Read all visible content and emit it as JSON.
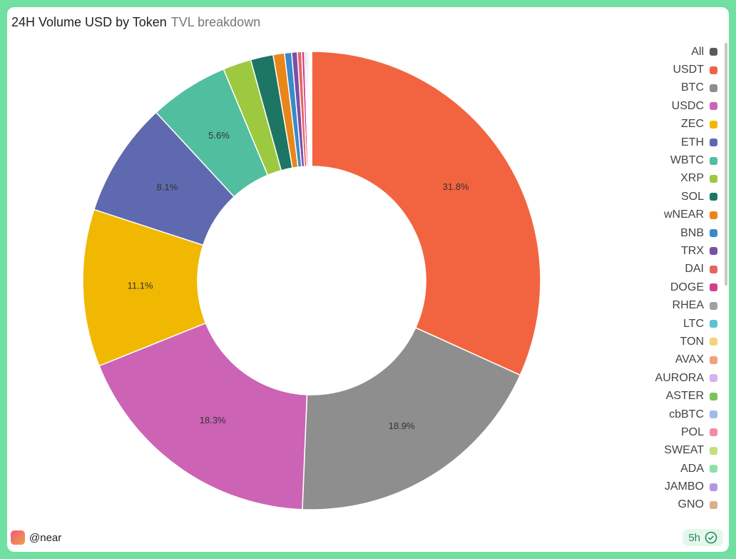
{
  "chart_data": {
    "type": "donut",
    "title": "24H Volume USD by Token",
    "subtitle": "TVL breakdown",
    "legend_all": {
      "label": "All",
      "color": "#5a5a5a"
    },
    "categories": [
      "USDT",
      "BTC",
      "USDC",
      "ZEC",
      "ETH",
      "WBTC",
      "XRP",
      "SOL",
      "wNEAR",
      "BNB",
      "TRX",
      "DAI",
      "DOGE",
      "RHEA",
      "LTC",
      "TON",
      "AVAX",
      "AURORA",
      "ASTER",
      "cbBTC",
      "POL",
      "SWEAT",
      "ADA",
      "JAMBO",
      "GNO"
    ],
    "values": [
      31.8,
      18.9,
      18.3,
      11.1,
      8.1,
      5.6,
      2.0,
      1.6,
      0.8,
      0.5,
      0.4,
      0.3,
      0.2,
      0.1,
      0.1,
      0.1,
      0.05,
      0.03,
      0.03,
      0.02,
      0.02,
      0.02,
      0.01,
      0.01,
      0.01
    ],
    "value_labels": [
      "31.8%",
      "18.9%",
      "18.3%",
      "11.1%",
      "8.1%",
      "5.6%",
      null,
      null,
      null,
      null,
      null,
      null,
      null,
      null,
      null,
      null,
      null,
      null,
      null,
      null,
      null,
      null,
      null,
      null,
      null
    ],
    "colors": [
      "#f26440",
      "#8e8e8e",
      "#cc63b5",
      "#f0b800",
      "#5f69b0",
      "#52bea0",
      "#9dc940",
      "#1d7563",
      "#e9861a",
      "#3a8ac9",
      "#7b4fa6",
      "#e8645f",
      "#d63c8f",
      "#a0a0a0",
      "#5fc0d3",
      "#f5d27a",
      "#f0a07a",
      "#d9b3ec",
      "#7bc25c",
      "#9dbcec",
      "#f28ba8",
      "#c5df7a",
      "#8fe0a8",
      "#b296e6",
      "#d8b088"
    ]
  },
  "footer": {
    "author": "@near",
    "age": "5h"
  }
}
